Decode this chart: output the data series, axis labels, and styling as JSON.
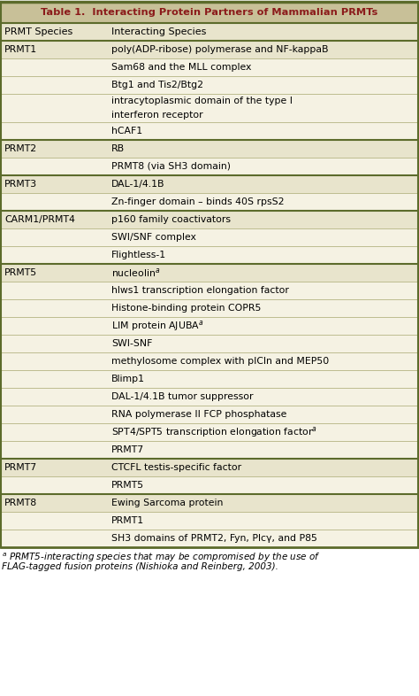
{
  "title": "Table 1.  Interacting Protein Partners of Mammalian PRMTs",
  "title_color": "#8B1A1A",
  "title_bg": "#C8C098",
  "header_bg": "#E8E4CC",
  "row_bg_light": "#F5F2E3",
  "row_bg_dark": "#E8E4CC",
  "border_color_outer": "#5C6B2B",
  "border_color_inner": "#A8A870",
  "col1_header": "PRMT Species",
  "col2_header": "Interacting Species",
  "rows": [
    [
      "PRMT1",
      "poly(ADP-ribose) polymerase and NF-kappaB"
    ],
    [
      "",
      "Sam68 and the MLL complex"
    ],
    [
      "",
      "Btg1 and Tis2/Btg2"
    ],
    [
      "",
      "intracytoplasmic domain of the type I\ninterferon receptor"
    ],
    [
      "",
      "hCAF1"
    ],
    [
      "PRMT2",
      "RB"
    ],
    [
      "",
      "PRMT8 (via SH3 domain)"
    ],
    [
      "PRMT3",
      "DAL-1/4.1B"
    ],
    [
      "",
      "Zn-finger domain – binds 40S rpsS2"
    ],
    [
      "CARM1/PRMT4",
      "p160 family coactivators"
    ],
    [
      "",
      "SWI/SNF complex"
    ],
    [
      "",
      "Flightless-1"
    ],
    [
      "PRMT5",
      "nucleolin^a"
    ],
    [
      "",
      "hlws1 transcription elongation factor"
    ],
    [
      "",
      "Histone-binding protein COPR5"
    ],
    [
      "",
      "LIM protein AJUBA^a"
    ],
    [
      "",
      "SWI-SNF"
    ],
    [
      "",
      "methylosome complex with pICln and MEP50"
    ],
    [
      "",
      "Blimp1"
    ],
    [
      "",
      "DAL-1/4.1B tumor suppressor"
    ],
    [
      "",
      "RNA polymerase II FCP phosphatase"
    ],
    [
      "",
      "SPT4/SPT5 transcription elongation factor^a"
    ],
    [
      "",
      "PRMT7"
    ],
    [
      "PRMT7",
      "CTCFL testis-specific factor"
    ],
    [
      "",
      "PRMT5"
    ],
    [
      "PRMT8",
      "Ewing Sarcoma protein"
    ],
    [
      "",
      "PRMT1"
    ],
    [
      "",
      "SH3 domains of PRMT2, Fyn, Plcγ, and P85"
    ]
  ],
  "group_starts": [
    0,
    5,
    7,
    9,
    12,
    23,
    25
  ],
  "footnote_line1": "a PRMT5-interacting species that may be compromised by the use of",
  "footnote_line2": "FLAG-tagged fusion proteins (Nishioka and Reinberg, 2003)."
}
